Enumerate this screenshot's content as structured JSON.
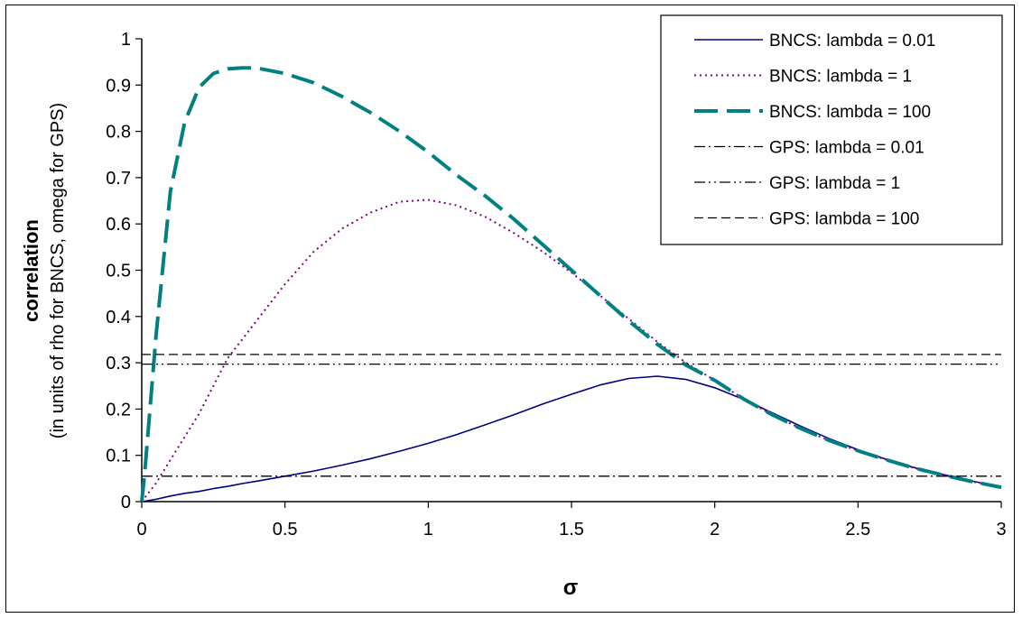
{
  "chart_data": {
    "type": "line",
    "title": "",
    "xlabel": "σ",
    "ylabel": "correlation",
    "ylabel_sub": "(in units of rho for BNCS, omega for GPS)",
    "xlim": [
      0,
      3
    ],
    "ylim": [
      0,
      1
    ],
    "x_ticks": [
      0,
      0.5,
      1,
      1.5,
      2,
      2.5,
      3
    ],
    "y_ticks": [
      0,
      0.1,
      0.2,
      0.3,
      0.4,
      0.5,
      0.6,
      0.7,
      0.8,
      0.9,
      1
    ],
    "x_tick_labels": [
      "0",
      "0.5",
      "1",
      "1.5",
      "2",
      "2.5",
      "3"
    ],
    "y_tick_labels": [
      "0",
      "0.1",
      "0.2",
      "0.3",
      "0.4",
      "0.5",
      "0.6",
      "0.7",
      "0.8",
      "0.9",
      "1"
    ],
    "grid": false,
    "legend_position": "top-right",
    "x": [
      0,
      0.01,
      0.05,
      0.1,
      0.15,
      0.2,
      0.25,
      0.3,
      0.35,
      0.4,
      0.5,
      0.6,
      0.7,
      0.8,
      0.9,
      1.0,
      1.1,
      1.2,
      1.3,
      1.4,
      1.5,
      1.6,
      1.7,
      1.8,
      1.9,
      2.0,
      2.1,
      2.2,
      2.3,
      2.4,
      2.5,
      2.6,
      2.7,
      2.8,
      2.9,
      3.0
    ],
    "series": [
      {
        "name": "BNCS: lambda = 0.01",
        "color": "#000080",
        "dash": "solid",
        "values": [
          0,
          0.001,
          0.005,
          0.012,
          0.018,
          0.022,
          0.028,
          0.033,
          0.039,
          0.044,
          0.055,
          0.066,
          0.079,
          0.093,
          0.109,
          0.126,
          0.145,
          0.166,
          0.188,
          0.211,
          0.232,
          0.252,
          0.266,
          0.271,
          0.264,
          0.246,
          0.221,
          0.192,
          0.163,
          0.136,
          0.112,
          0.091,
          0.073,
          0.058,
          0.044,
          0.032
        ]
      },
      {
        "name": "BNCS: lambda = 1",
        "color": "#800080",
        "dash": "dotted",
        "values": [
          0,
          0.008,
          0.04,
          0.09,
          0.14,
          0.19,
          0.25,
          0.31,
          0.35,
          0.39,
          0.47,
          0.54,
          0.59,
          0.625,
          0.648,
          0.652,
          0.64,
          0.615,
          0.58,
          0.54,
          0.495,
          0.445,
          0.395,
          0.345,
          0.3,
          0.262,
          0.222,
          0.188,
          0.158,
          0.132,
          0.11,
          0.09,
          0.072,
          0.057,
          0.043,
          0.031
        ]
      },
      {
        "name": "BNCS: lambda = 100",
        "color": "#008080",
        "dash": "longdash",
        "values": [
          0,
          0.06,
          0.36,
          0.67,
          0.82,
          0.895,
          0.925,
          0.935,
          0.937,
          0.937,
          0.925,
          0.905,
          0.875,
          0.84,
          0.8,
          0.755,
          0.705,
          0.66,
          0.61,
          0.555,
          0.5,
          0.445,
          0.39,
          0.34,
          0.295,
          0.262,
          0.222,
          0.188,
          0.158,
          0.132,
          0.11,
          0.09,
          0.072,
          0.057,
          0.043,
          0.031
        ]
      },
      {
        "name": "GPS: lambda = 0.01",
        "color": "#000000",
        "dash": "dashdot",
        "values": [
          0.055,
          0.055,
          0.055,
          0.055,
          0.055,
          0.055,
          0.055,
          0.055,
          0.055,
          0.055,
          0.055,
          0.055,
          0.055,
          0.055,
          0.055,
          0.055,
          0.055,
          0.055,
          0.055,
          0.055,
          0.055,
          0.055,
          0.055,
          0.055,
          0.055,
          0.055,
          0.055,
          0.055,
          0.055,
          0.055,
          0.055,
          0.055,
          0.055,
          0.055,
          0.055,
          0.055
        ]
      },
      {
        "name": "GPS: lambda = 1",
        "color": "#000000",
        "dash": "dashdotdot",
        "values": [
          0.297,
          0.297,
          0.297,
          0.297,
          0.297,
          0.297,
          0.297,
          0.297,
          0.297,
          0.297,
          0.297,
          0.297,
          0.297,
          0.297,
          0.297,
          0.297,
          0.297,
          0.297,
          0.297,
          0.297,
          0.297,
          0.297,
          0.297,
          0.297,
          0.297,
          0.297,
          0.297,
          0.297,
          0.297,
          0.297,
          0.297,
          0.297,
          0.297,
          0.297,
          0.297,
          0.297
        ]
      },
      {
        "name": "GPS: lambda = 100",
        "color": "#000000",
        "dash": "dashed",
        "values": [
          0.318,
          0.318,
          0.318,
          0.318,
          0.318,
          0.318,
          0.318,
          0.318,
          0.318,
          0.318,
          0.318,
          0.318,
          0.318,
          0.318,
          0.318,
          0.318,
          0.318,
          0.318,
          0.318,
          0.318,
          0.318,
          0.318,
          0.318,
          0.318,
          0.318,
          0.318,
          0.318,
          0.318,
          0.318,
          0.318,
          0.318,
          0.318,
          0.318,
          0.318,
          0.318,
          0.318
        ]
      }
    ]
  }
}
